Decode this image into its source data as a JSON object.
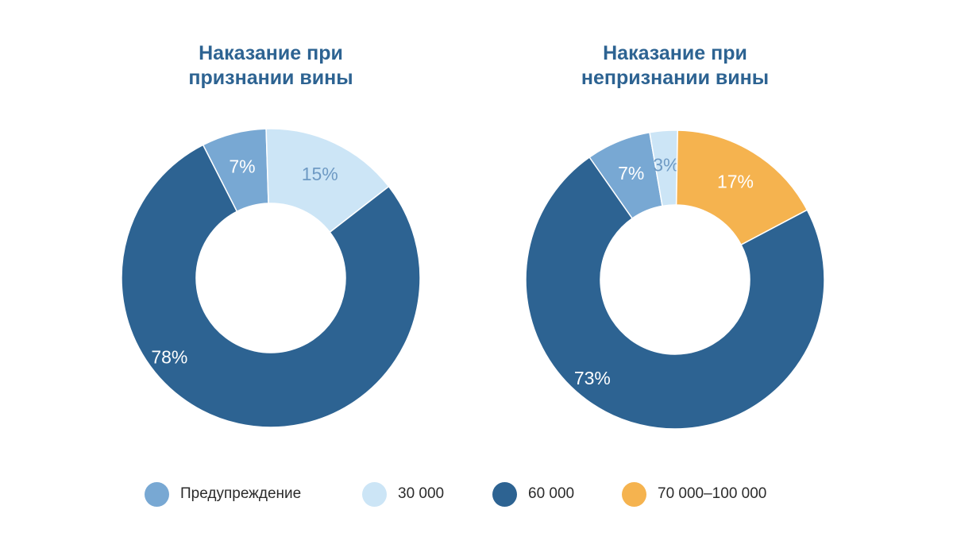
{
  "chart_data": [
    {
      "type": "donut",
      "title": "Наказание при признании вины",
      "title_lines": [
        "Наказание при",
        "признании вины"
      ],
      "slices": [
        {
          "label": "Предупреждение",
          "value": 7,
          "display": "7%"
        },
        {
          "label": "30 000",
          "value": 15,
          "display": "15%"
        },
        {
          "label": "60 000",
          "value": 78,
          "display": "78%"
        }
      ]
    },
    {
      "type": "donut",
      "title": "Наказание при непризнании вины",
      "title_lines": [
        "Наказание при",
        "непризнании вины"
      ],
      "slices": [
        {
          "label": "Предупреждение",
          "value": 7,
          "display": "7%"
        },
        {
          "label": "30 000",
          "value": 3,
          "display": "3%"
        },
        {
          "label": "70 000–100 000",
          "value": 17,
          "display": "17%"
        },
        {
          "label": "60 000",
          "value": 73,
          "display": "73%"
        }
      ]
    }
  ],
  "legend": [
    {
      "label": "Предупреждение",
      "color": "#78a8d3"
    },
    {
      "label": "30 000",
      "color": "#cce5f6"
    },
    {
      "label": "60 000",
      "color": "#2d6392"
    },
    {
      "label": "70 000–100 000",
      "color": "#f5b34f"
    }
  ],
  "colors": {
    "Предупреждение": "#78a8d3",
    "30 000": "#cce5f6",
    "60 000": "#2d6392",
    "70 000–100 000": "#f5b34f"
  },
  "label_colors": {
    "Предупреждение": "#ffffff",
    "30 000": "#6e9ac4",
    "60 000": "#ffffff",
    "70 000–100 000": "#ffffff"
  }
}
